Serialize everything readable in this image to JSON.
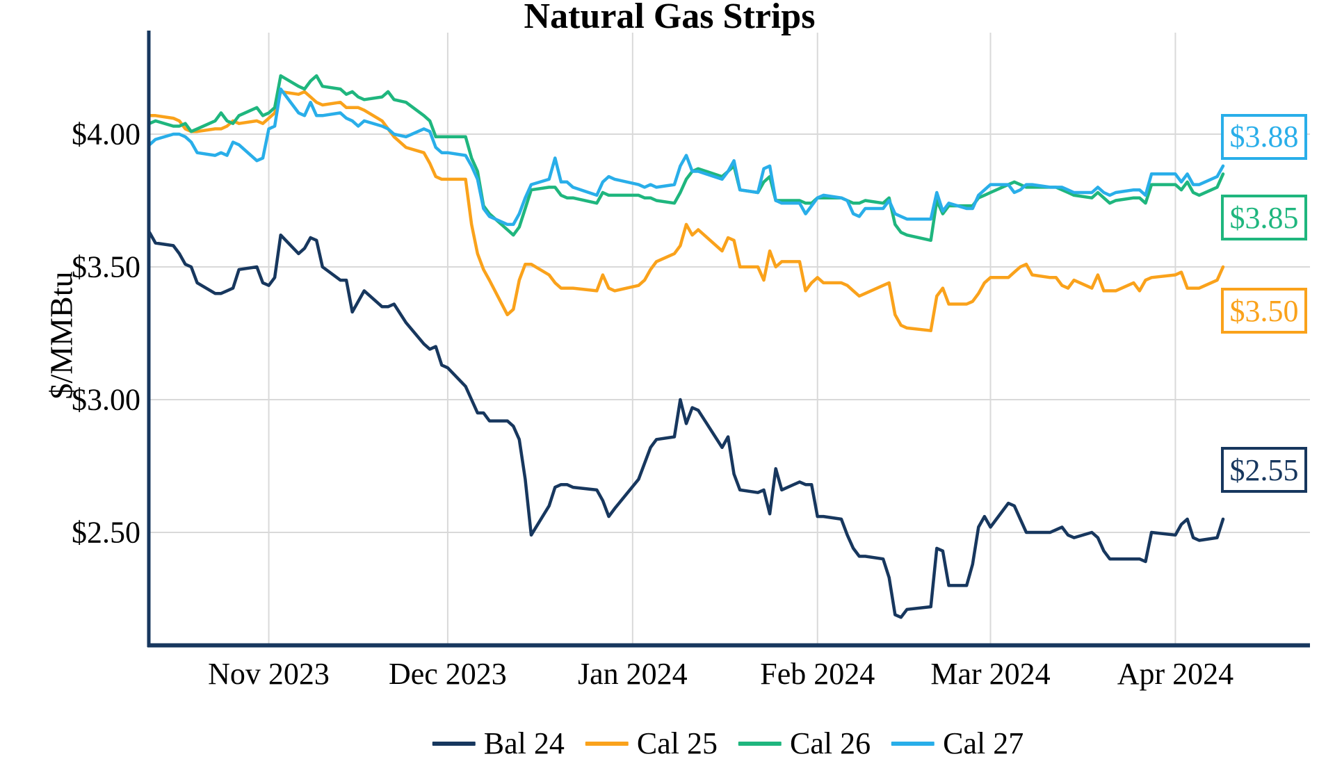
{
  "title": "Natural Gas Strips",
  "y_axis": {
    "label": "$/MMBtu",
    "ticks": [
      {
        "text": "$4.00",
        "value": 4.0
      },
      {
        "text": "$3.50",
        "value": 3.5
      },
      {
        "text": "$3.00",
        "value": 3.0
      },
      {
        "text": "$2.50",
        "value": 2.5
      }
    ]
  },
  "x_axis": {
    "ticks": [
      {
        "text": "Nov 2023",
        "day": 20
      },
      {
        "text": "Dec 2023",
        "day": 50
      },
      {
        "text": "Jan 2024",
        "day": 81
      },
      {
        "text": "Feb 2024",
        "day": 112
      },
      {
        "text": "Mar 2024",
        "day": 141
      },
      {
        "text": "Apr 2024",
        "day": 172
      }
    ]
  },
  "legend": [
    {
      "label": "Bal 24",
      "color": "#17375E"
    },
    {
      "label": "Cal 25",
      "color": "#FAA21B"
    },
    {
      "label": "Cal 26",
      "color": "#1FB67E"
    },
    {
      "label": "Cal 27",
      "color": "#29AEE9"
    }
  ],
  "end_labels": [
    {
      "text": "$3.88",
      "color": "#29AEE9",
      "value": 3.99
    },
    {
      "text": "$3.85",
      "color": "#1FB67E",
      "value": 3.685
    },
    {
      "text": "$3.50",
      "color": "#FAA21B",
      "value": 3.335
    },
    {
      "text": "$2.55",
      "color": "#17375E",
      "value": 2.735
    }
  ],
  "colors": {
    "axis": "#17375E",
    "gridline": "#D9D9D9",
    "background": "#FFFFFF",
    "title_text": "#000000"
  },
  "chart_data": {
    "type": "line",
    "title": "Natural Gas Strips",
    "xlabel": "",
    "ylabel": "$/MMBtu",
    "ylim": [
      2.07,
      4.38
    ],
    "x_unit": "days since 2023-10-12 (business days plotted on a date axis, Oct 2023 - Apr 2024)",
    "grid": true,
    "legend_position": "bottom",
    "x": [
      0,
      1,
      4,
      5,
      6,
      7,
      8,
      11,
      12,
      13,
      14,
      15,
      18,
      19,
      20,
      21,
      22,
      25,
      26,
      27,
      28,
      29,
      32,
      33,
      34,
      35,
      36,
      39,
      40,
      41,
      43,
      46,
      47,
      48,
      49,
      50,
      53,
      54,
      55,
      56,
      57,
      60,
      61,
      62,
      63,
      64,
      67,
      68,
      69,
      70,
      71,
      75,
      76,
      77,
      78,
      82,
      83,
      84,
      85,
      88,
      89,
      90,
      91,
      92,
      96,
      97,
      98,
      99,
      102,
      103,
      104,
      105,
      106,
      109,
      110,
      111,
      112,
      113,
      116,
      117,
      118,
      119,
      120,
      123,
      124,
      125,
      126,
      127,
      131,
      132,
      133,
      134,
      137,
      138,
      139,
      140,
      141,
      144,
      145,
      146,
      147,
      148,
      151,
      152,
      153,
      154,
      155,
      158,
      159,
      160,
      161,
      162,
      165,
      166,
      167,
      168,
      172,
      173,
      174,
      175,
      176,
      179,
      180
    ],
    "series": [
      {
        "name": "Bal 24",
        "color": "#17375E",
        "end_label": "$2.55",
        "values": [
          3.63,
          3.59,
          3.58,
          3.55,
          3.51,
          3.5,
          3.44,
          3.4,
          3.4,
          3.41,
          3.42,
          3.49,
          3.5,
          3.44,
          3.43,
          3.46,
          3.62,
          3.55,
          3.57,
          3.61,
          3.6,
          3.5,
          3.45,
          3.45,
          3.33,
          3.37,
          3.41,
          3.35,
          3.35,
          3.36,
          3.29,
          3.21,
          3.19,
          3.2,
          3.13,
          3.12,
          3.05,
          3.0,
          2.95,
          2.95,
          2.92,
          2.92,
          2.9,
          2.85,
          2.7,
          2.49,
          2.6,
          2.67,
          2.68,
          2.68,
          2.67,
          2.66,
          2.62,
          2.56,
          2.59,
          2.7,
          2.76,
          2.82,
          2.85,
          2.86,
          3.0,
          2.91,
          2.97,
          2.96,
          2.82,
          2.86,
          2.72,
          2.66,
          2.65,
          2.66,
          2.57,
          2.74,
          2.66,
          2.69,
          2.68,
          2.68,
          2.56,
          2.56,
          2.55,
          2.49,
          2.44,
          2.41,
          2.41,
          2.4,
          2.33,
          2.19,
          2.18,
          2.21,
          2.22,
          2.44,
          2.43,
          2.3,
          2.3,
          2.38,
          2.52,
          2.56,
          2.52,
          2.61,
          2.6,
          2.55,
          2.5,
          2.5,
          2.5,
          2.51,
          2.52,
          2.49,
          2.48,
          2.5,
          2.48,
          2.43,
          2.4,
          2.4,
          2.4,
          2.4,
          2.39,
          2.5,
          2.49,
          2.53,
          2.55,
          2.48,
          2.47,
          2.48,
          2.55
        ]
      },
      {
        "name": "Cal 25",
        "color": "#FAA21B",
        "end_label": "$3.50",
        "values": [
          4.07,
          4.07,
          4.06,
          4.05,
          4.02,
          4.01,
          4.01,
          4.02,
          4.02,
          4.03,
          4.05,
          4.04,
          4.05,
          4.04,
          4.06,
          4.08,
          4.16,
          4.15,
          4.16,
          4.14,
          4.12,
          4.11,
          4.12,
          4.1,
          4.1,
          4.1,
          4.09,
          4.05,
          4.02,
          3.99,
          3.95,
          3.93,
          3.89,
          3.84,
          3.83,
          3.83,
          3.83,
          3.66,
          3.55,
          3.49,
          3.45,
          3.32,
          3.34,
          3.45,
          3.51,
          3.51,
          3.47,
          3.44,
          3.42,
          3.42,
          3.42,
          3.41,
          3.47,
          3.42,
          3.41,
          3.43,
          3.45,
          3.49,
          3.52,
          3.55,
          3.58,
          3.66,
          3.62,
          3.64,
          3.56,
          3.61,
          3.6,
          3.5,
          3.5,
          3.45,
          3.56,
          3.5,
          3.52,
          3.52,
          3.41,
          3.44,
          3.46,
          3.44,
          3.44,
          3.43,
          3.41,
          3.39,
          3.4,
          3.43,
          3.44,
          3.32,
          3.28,
          3.27,
          3.26,
          3.39,
          3.42,
          3.36,
          3.36,
          3.37,
          3.4,
          3.44,
          3.46,
          3.46,
          3.48,
          3.5,
          3.51,
          3.47,
          3.46,
          3.46,
          3.43,
          3.42,
          3.45,
          3.42,
          3.47,
          3.41,
          3.41,
          3.41,
          3.44,
          3.41,
          3.45,
          3.46,
          3.47,
          3.48,
          3.42,
          3.42,
          3.42,
          3.45,
          3.5
        ]
      },
      {
        "name": "Cal 26",
        "color": "#1FB67E",
        "end_label": "$3.85",
        "values": [
          4.04,
          4.05,
          4.03,
          4.03,
          4.04,
          4.01,
          4.02,
          4.05,
          4.08,
          4.05,
          4.04,
          4.07,
          4.1,
          4.07,
          4.08,
          4.1,
          4.22,
          4.18,
          4.17,
          4.2,
          4.22,
          4.18,
          4.17,
          4.15,
          4.16,
          4.14,
          4.13,
          4.14,
          4.16,
          4.13,
          4.12,
          4.07,
          4.05,
          3.99,
          3.99,
          3.99,
          3.99,
          3.91,
          3.86,
          3.73,
          3.7,
          3.64,
          3.62,
          3.65,
          3.72,
          3.79,
          3.8,
          3.8,
          3.77,
          3.76,
          3.76,
          3.74,
          3.78,
          3.77,
          3.77,
          3.77,
          3.76,
          3.76,
          3.75,
          3.74,
          3.78,
          3.83,
          3.86,
          3.87,
          3.84,
          3.86,
          3.88,
          3.79,
          3.78,
          3.82,
          3.84,
          3.75,
          3.75,
          3.75,
          3.74,
          3.74,
          3.76,
          3.76,
          3.76,
          3.75,
          3.74,
          3.74,
          3.75,
          3.74,
          3.76,
          3.66,
          3.63,
          3.62,
          3.6,
          3.75,
          3.7,
          3.73,
          3.73,
          3.73,
          3.76,
          3.77,
          3.78,
          3.81,
          3.82,
          3.81,
          3.8,
          3.8,
          3.8,
          3.8,
          3.79,
          3.78,
          3.77,
          3.76,
          3.78,
          3.76,
          3.74,
          3.75,
          3.76,
          3.76,
          3.74,
          3.81,
          3.81,
          3.79,
          3.82,
          3.78,
          3.77,
          3.8,
          3.85
        ]
      },
      {
        "name": "Cal 27",
        "color": "#29AEE9",
        "end_label": "$3.88",
        "values": [
          3.96,
          3.98,
          4.0,
          4.0,
          3.99,
          3.97,
          3.93,
          3.92,
          3.93,
          3.92,
          3.97,
          3.96,
          3.9,
          3.91,
          4.02,
          4.03,
          4.17,
          4.08,
          4.07,
          4.12,
          4.07,
          4.07,
          4.08,
          4.06,
          4.05,
          4.03,
          4.05,
          4.03,
          4.02,
          4.0,
          3.99,
          4.02,
          4.01,
          3.95,
          3.93,
          3.93,
          3.92,
          3.88,
          3.83,
          3.72,
          3.69,
          3.66,
          3.66,
          3.7,
          3.76,
          3.81,
          3.83,
          3.91,
          3.82,
          3.82,
          3.8,
          3.77,
          3.82,
          3.84,
          3.83,
          3.81,
          3.8,
          3.81,
          3.8,
          3.81,
          3.88,
          3.92,
          3.86,
          3.86,
          3.83,
          3.86,
          3.9,
          3.79,
          3.78,
          3.87,
          3.88,
          3.75,
          3.74,
          3.74,
          3.7,
          3.73,
          3.76,
          3.77,
          3.76,
          3.75,
          3.7,
          3.69,
          3.72,
          3.72,
          3.75,
          3.7,
          3.69,
          3.68,
          3.68,
          3.78,
          3.71,
          3.74,
          3.72,
          3.72,
          3.77,
          3.79,
          3.81,
          3.81,
          3.78,
          3.79,
          3.81,
          3.81,
          3.8,
          3.8,
          3.8,
          3.79,
          3.78,
          3.78,
          3.8,
          3.78,
          3.77,
          3.78,
          3.79,
          3.79,
          3.77,
          3.85,
          3.85,
          3.82,
          3.85,
          3.81,
          3.81,
          3.84,
          3.88
        ]
      }
    ]
  }
}
